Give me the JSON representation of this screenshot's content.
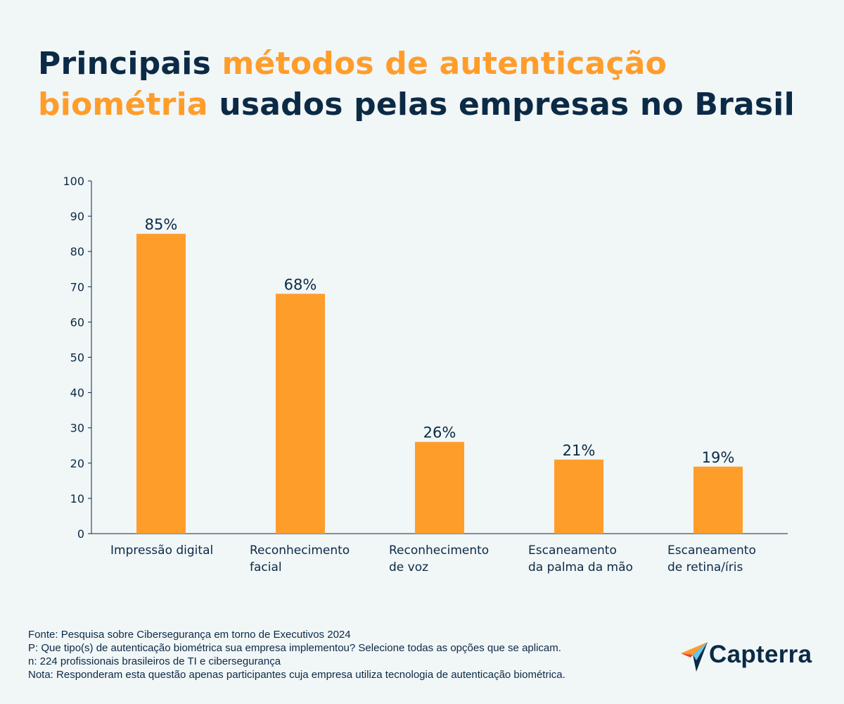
{
  "title": {
    "part1": "Principais ",
    "part2": "métodos de autenticação biométria",
    "part3": " usados pelas empresas no Brasil"
  },
  "colors": {
    "accent": "#ff9d2b",
    "dark": "#0b2a45",
    "background": "#f1f6f7"
  },
  "chart_data": {
    "type": "bar",
    "title": "Principais métodos de autenticação biométria usados pelas empresas no Brasil",
    "categories": [
      [
        "Impressão digital"
      ],
      [
        "Reconhecimento",
        "facial"
      ],
      [
        "Reconhecimento",
        "de voz"
      ],
      [
        "Escaneamento",
        "da palma da mão"
      ],
      [
        "Escaneamento",
        "de retina/íris"
      ]
    ],
    "values": [
      85,
      68,
      26,
      21,
      19
    ],
    "data_labels": [
      "85%",
      "68%",
      "26%",
      "21%",
      "19%"
    ],
    "xlabel": "",
    "ylabel": "",
    "ylim": [
      0,
      100
    ],
    "yticks": [
      0,
      10,
      20,
      30,
      40,
      50,
      60,
      70,
      80,
      90,
      100
    ],
    "grid": false,
    "bar_color": "#ff9d2b"
  },
  "footer": {
    "source": "Fonte: Pesquisa sobre Cibersegurança em torno de Executivos 2024",
    "question": "P: Que tipo(s) de autenticação biométrica sua empresa implementou? Selecione todas as opções que se aplicam.",
    "sample": "n: 224 profissionais brasileiros de TI e cibersegurança",
    "note": "Nota: Responderam esta questão apenas participantes cuja empresa utiliza tecnologia de autenticação biométrica."
  },
  "logo": {
    "text": "Capterra",
    "icon": "capterra-arrow-icon"
  }
}
